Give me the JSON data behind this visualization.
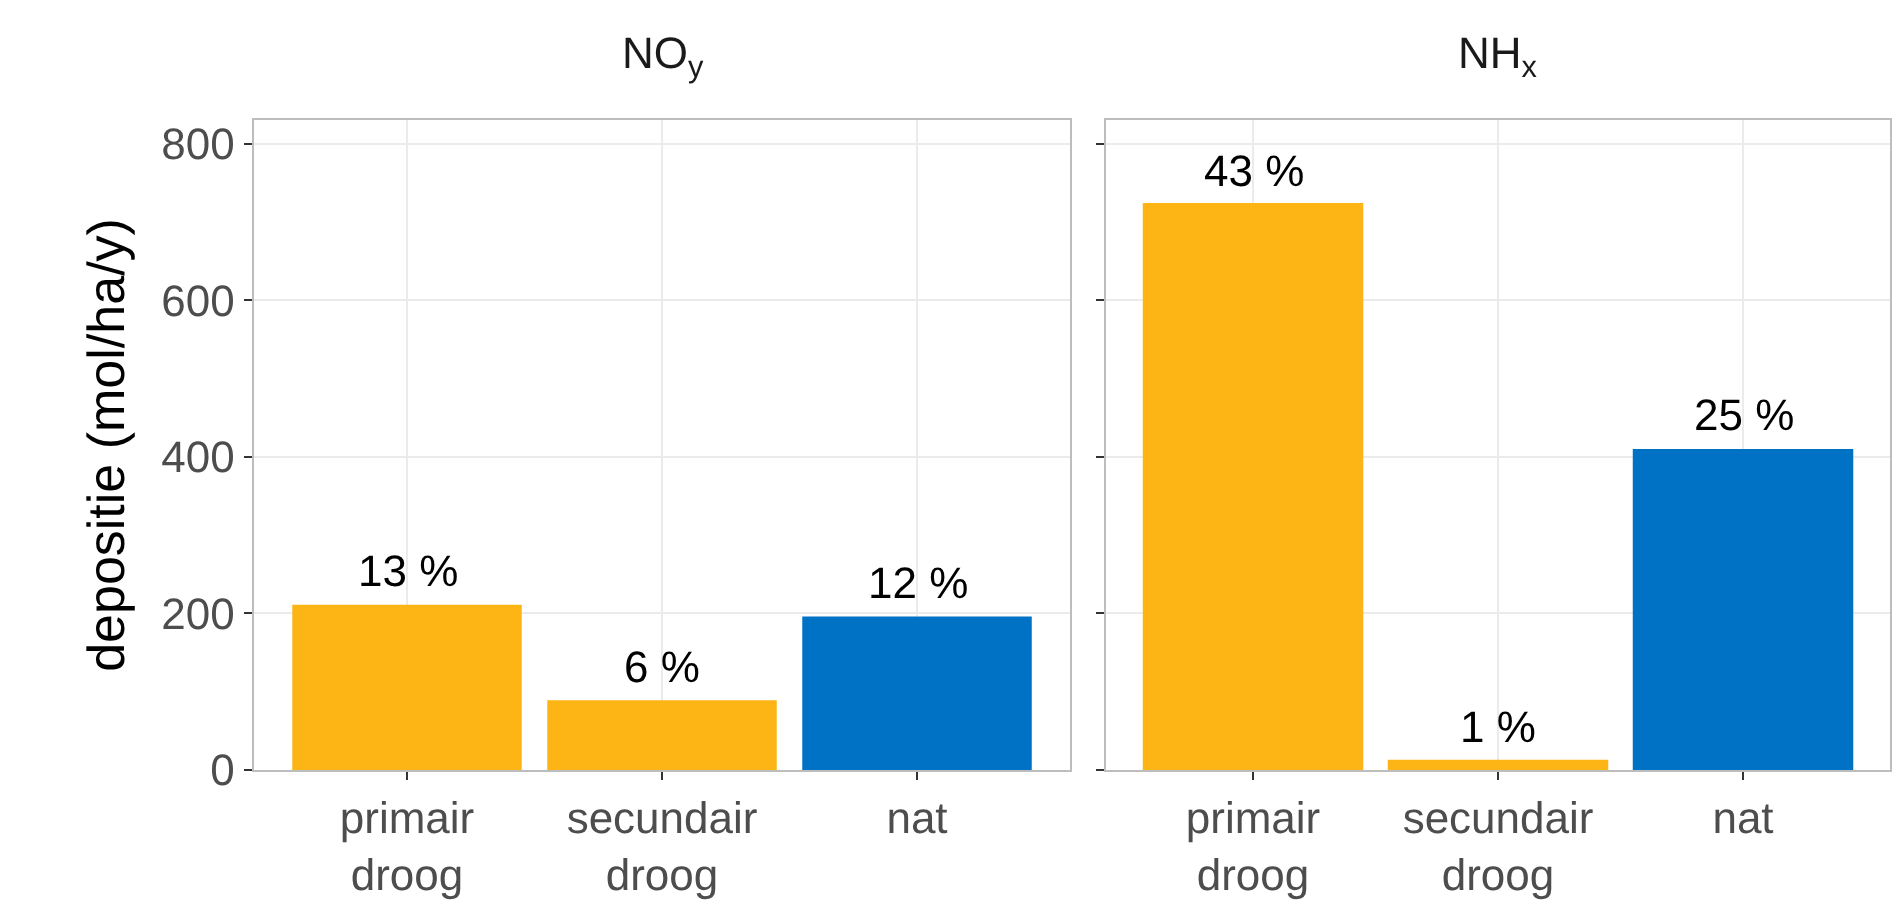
{
  "chart_data": [
    {
      "type": "bar",
      "title": "NO$_{y}$",
      "ylabel": "depositie (mol/ha/y)",
      "categories": [
        "primair droog",
        "secundair droog",
        "nat"
      ],
      "values": [
        211,
        89,
        196
      ],
      "colors": [
        "#fdb515",
        "#fdb515",
        "#0072c6"
      ],
      "ylim": [
        0,
        830
      ],
      "yticks": [
        0,
        200,
        400,
        600,
        800
      ],
      "grid": true,
      "annotations": [
        {
          "text": "13 %",
          "x": "primair droog",
          "y": 211
        },
        {
          "text": "6 %",
          "x": "secundair droog",
          "y": 89
        },
        {
          "text": "12 %",
          "x": "nat",
          "y": 196
        }
      ]
    },
    {
      "type": "bar",
      "title": "NH$_{x}$",
      "categories": [
        "primair droog",
        "secundair droog",
        "nat"
      ],
      "values": [
        724,
        13,
        410
      ],
      "colors": [
        "#fdb515",
        "#fdb515",
        "#0072c6"
      ],
      "ylim": [
        0,
        830
      ],
      "yticks": [
        0,
        200,
        400,
        600,
        800
      ],
      "grid": true,
      "tick_labels": "x",
      "annotations": [
        {
          "text": "43 %",
          "x": "primair droog",
          "y": 724
        },
        {
          "text": "1 %",
          "x": "secundair droog",
          "y": 13
        },
        {
          "text": "25 %",
          "x": "nat",
          "y": 410
        }
      ]
    }
  ]
}
